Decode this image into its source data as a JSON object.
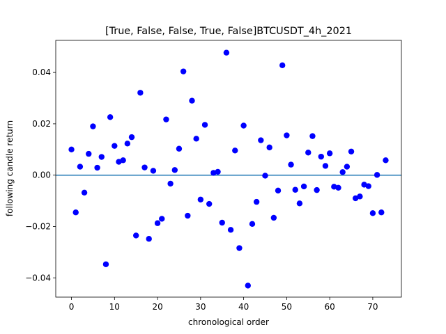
{
  "chart_data": {
    "type": "scatter",
    "title": "[True, False, False, True, False]BTCUSDT_4h_2021",
    "xlabel": "chronological order",
    "ylabel": "following candle return",
    "xlim": [
      -3.65,
      76.65
    ],
    "ylim": [
      -0.0475,
      0.0525
    ],
    "xticks": [
      0,
      10,
      20,
      30,
      40,
      50,
      60,
      70
    ],
    "xtick_labels": [
      "0",
      "10",
      "20",
      "30",
      "40",
      "50",
      "60",
      "70"
    ],
    "yticks": [
      -0.04,
      -0.02,
      0.0,
      0.02,
      0.04
    ],
    "ytick_labels": [
      "−0.04",
      "−0.02",
      "0.00",
      "0.02",
      "0.04"
    ],
    "marker_color": "#0000ff",
    "hline": {
      "y": 0.0,
      "color": "#1f77b4"
    },
    "grid": false,
    "legend": "none",
    "x": [
      0,
      1,
      2,
      3,
      4,
      5,
      6,
      7,
      8,
      9,
      10,
      11,
      12,
      13,
      14,
      15,
      16,
      17,
      18,
      19,
      20,
      21,
      22,
      23,
      24,
      25,
      26,
      27,
      28,
      29,
      30,
      31,
      32,
      33,
      34,
      35,
      36,
      37,
      38,
      39,
      40,
      41,
      42,
      43,
      44,
      45,
      46,
      47,
      48,
      49,
      50,
      51,
      52,
      53,
      54,
      55,
      56,
      57,
      58,
      59,
      60,
      61,
      62,
      63,
      64,
      65,
      66,
      67,
      68,
      69,
      70,
      71,
      72,
      73
    ],
    "y": [
      0.01,
      -0.0145,
      0.0033,
      -0.0068,
      0.0083,
      0.019,
      0.0029,
      0.0071,
      -0.0347,
      0.0226,
      0.0114,
      0.0052,
      0.0058,
      0.0123,
      0.0148,
      -0.0235,
      0.0321,
      0.003,
      -0.0248,
      0.0017,
      -0.0187,
      -0.017,
      0.0217,
      -0.0033,
      0.002,
      0.0103,
      0.0404,
      -0.0158,
      0.029,
      0.0142,
      -0.0095,
      0.0196,
      -0.0112,
      0.0009,
      0.0013,
      -0.0185,
      0.0477,
      -0.0213,
      0.0096,
      -0.0284,
      0.0193,
      -0.043,
      -0.019,
      -0.0104,
      0.0136,
      -0.0002,
      0.0108,
      -0.0166,
      -0.006,
      0.0428,
      0.0155,
      0.0041,
      -0.0057,
      -0.011,
      -0.0044,
      0.0088,
      0.0152,
      -0.0058,
      0.0072,
      0.0036,
      0.0085,
      -0.0045,
      -0.0049,
      0.0012,
      0.0033,
      0.0092,
      -0.009,
      -0.0083,
      -0.0037,
      -0.0043,
      -0.0148,
      0.0001,
      -0.0145,
      0.0058
    ]
  }
}
